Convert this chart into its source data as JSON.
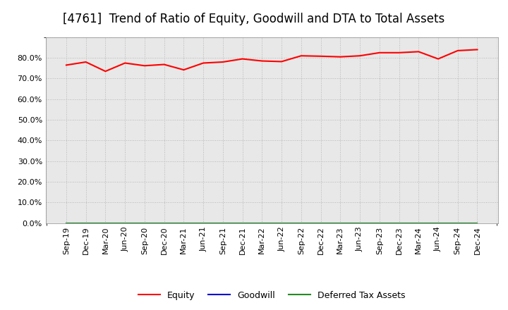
{
  "title": "[4761]  Trend of Ratio of Equity, Goodwill and DTA to Total Assets",
  "x_labels": [
    "Sep-19",
    "Dec-19",
    "Mar-20",
    "Jun-20",
    "Sep-20",
    "Dec-20",
    "Mar-21",
    "Jun-21",
    "Sep-21",
    "Dec-21",
    "Mar-22",
    "Jun-22",
    "Sep-22",
    "Dec-22",
    "Mar-23",
    "Jun-23",
    "Sep-23",
    "Dec-23",
    "Mar-24",
    "Jun-24",
    "Sep-24",
    "Dec-24"
  ],
  "equity": [
    76.5,
    78.0,
    73.5,
    77.5,
    76.2,
    76.8,
    74.2,
    77.5,
    78.0,
    79.5,
    78.5,
    78.2,
    81.0,
    80.8,
    80.5,
    81.0,
    82.5,
    82.5,
    83.0,
    79.5,
    83.5,
    84.0
  ],
  "goodwill": [
    0.0,
    0.0,
    0.0,
    0.0,
    0.0,
    0.0,
    0.0,
    0.0,
    0.0,
    0.0,
    0.0,
    0.0,
    0.0,
    0.0,
    0.0,
    0.0,
    0.0,
    0.0,
    0.0,
    0.0,
    0.0,
    0.0
  ],
  "dta": [
    0.0,
    0.0,
    0.0,
    0.0,
    0.0,
    0.0,
    0.0,
    0.0,
    0.0,
    0.0,
    0.0,
    0.0,
    0.0,
    0.0,
    0.0,
    0.0,
    0.0,
    0.0,
    0.0,
    0.0,
    0.0,
    0.0
  ],
  "equity_color": "#FF0000",
  "goodwill_color": "#0000CD",
  "dta_color": "#228B22",
  "bg_color": "#FFFFFF",
  "plot_bg_color": "#E8E8E8",
  "grid_color": "#FFFFFF",
  "grid_minor_color": "#CCCCCC",
  "ylim": [
    0,
    90
  ],
  "yticks": [
    0,
    10,
    20,
    30,
    40,
    50,
    60,
    70,
    80
  ],
  "title_fontsize": 12,
  "tick_fontsize": 8,
  "legend_labels": [
    "Equity",
    "Goodwill",
    "Deferred Tax Assets"
  ]
}
